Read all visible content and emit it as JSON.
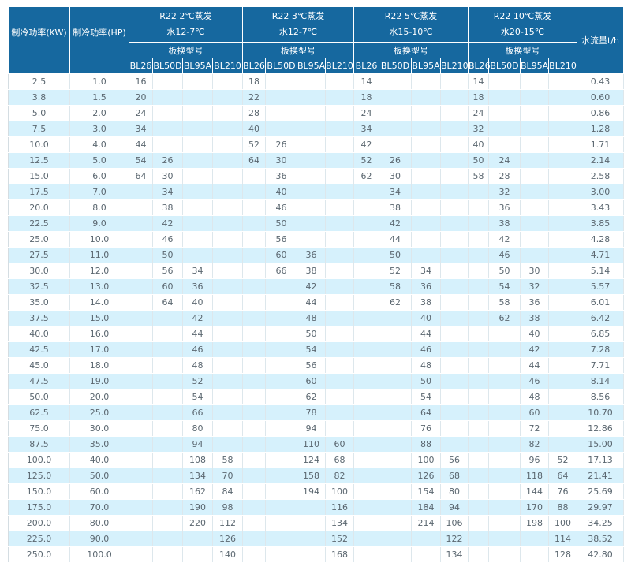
{
  "table": {
    "kw_label": "制冷功率(KW)",
    "hp_label": "制冷功率(HP)",
    "flow_label": "水流量t/h",
    "groups": [
      {
        "title_line1": "R22 2℃蒸发",
        "title_line2": "水12-7℃",
        "subtitle": "板换型号",
        "models": [
          "BL26",
          "BL50D",
          "BL95A",
          "BL210"
        ]
      },
      {
        "title_line1": "R22 3℃蒸发",
        "title_line2": "水12-7℃",
        "subtitle": "板换型号",
        "models": [
          "BL26",
          "BL50D",
          "BL95A",
          "BL210"
        ]
      },
      {
        "title_line1": "R22 5℃蒸发",
        "title_line2": "水15-10℃",
        "subtitle": "板换型号",
        "models": [
          "BL26",
          "BL50D",
          "BL95A",
          "BL210"
        ]
      },
      {
        "title_line1": "R22 10℃蒸发",
        "title_line2": "水20-15℃",
        "subtitle": "板换型号",
        "models": [
          "BL26",
          "BL50D",
          "BL95A",
          "BL210"
        ]
      }
    ],
    "colors": {
      "header_bg": "#16689f",
      "header_text": "#ffffff",
      "row_bg": "#ffffff",
      "row_alt_bg": "#d6f1fc",
      "body_text": "#5b6770",
      "grid_line": "#dde7ec"
    },
    "rows": [
      [
        "2.5",
        "1.0",
        "16",
        "",
        "",
        "",
        "18",
        "",
        "",
        "",
        "14",
        "",
        "",
        "",
        "14",
        "",
        "",
        "",
        "0.43"
      ],
      [
        "3.8",
        "1.5",
        "20",
        "",
        "",
        "",
        "22",
        "",
        "",
        "",
        "18",
        "",
        "",
        "",
        "18",
        "",
        "",
        "",
        "0.60"
      ],
      [
        "5.0",
        "2.0",
        "24",
        "",
        "",
        "",
        "28",
        "",
        "",
        "",
        "24",
        "",
        "",
        "",
        "24",
        "",
        "",
        "",
        "0.86"
      ],
      [
        "7.5",
        "3.0",
        "34",
        "",
        "",
        "",
        "40",
        "",
        "",
        "",
        "34",
        "",
        "",
        "",
        "32",
        "",
        "",
        "",
        "1.28"
      ],
      [
        "10.0",
        "4.0",
        "44",
        "",
        "",
        "",
        "52",
        "26",
        "",
        "",
        "42",
        "",
        "",
        "",
        "40",
        "",
        "",
        "",
        "1.71"
      ],
      [
        "12.5",
        "5.0",
        "54",
        "26",
        "",
        "",
        "64",
        "30",
        "",
        "",
        "52",
        "26",
        "",
        "",
        "50",
        "24",
        "",
        "",
        "2.14"
      ],
      [
        "15.0",
        "6.0",
        "64",
        "30",
        "",
        "",
        "",
        "36",
        "",
        "",
        "62",
        "30",
        "",
        "",
        "58",
        "28",
        "",
        "",
        "2.58"
      ],
      [
        "17.5",
        "7.0",
        "",
        "34",
        "",
        "",
        "",
        "40",
        "",
        "",
        "",
        "34",
        "",
        "",
        "",
        "32",
        "",
        "",
        "3.00"
      ],
      [
        "20.0",
        "8.0",
        "",
        "38",
        "",
        "",
        "",
        "46",
        "",
        "",
        "",
        "38",
        "",
        "",
        "",
        "36",
        "",
        "",
        "3.43"
      ],
      [
        "22.5",
        "9.0",
        "",
        "42",
        "",
        "",
        "",
        "50",
        "",
        "",
        "",
        "42",
        "",
        "",
        "",
        "38",
        "",
        "",
        "3.85"
      ],
      [
        "25.0",
        "10.0",
        "",
        "46",
        "",
        "",
        "",
        "56",
        "",
        "",
        "",
        "44",
        "",
        "",
        "",
        "42",
        "",
        "",
        "4.28"
      ],
      [
        "27.5",
        "11.0",
        "",
        "50",
        "",
        "",
        "",
        "60",
        "36",
        "",
        "",
        "50",
        "",
        "",
        "",
        "46",
        "",
        "",
        "4.71"
      ],
      [
        "30.0",
        "12.0",
        "",
        "56",
        "34",
        "",
        "",
        "66",
        "38",
        "",
        "",
        "52",
        "34",
        "",
        "",
        "50",
        "30",
        "",
        "5.14"
      ],
      [
        "32.5",
        "13.0",
        "",
        "60",
        "36",
        "",
        "",
        "",
        "42",
        "",
        "",
        "58",
        "36",
        "",
        "",
        "54",
        "32",
        "",
        "5.57"
      ],
      [
        "35.0",
        "14.0",
        "",
        "64",
        "40",
        "",
        "",
        "",
        "44",
        "",
        "",
        "62",
        "38",
        "",
        "",
        "58",
        "36",
        "",
        "6.01"
      ],
      [
        "37.5",
        "15.0",
        "",
        "",
        "42",
        "",
        "",
        "",
        "48",
        "",
        "",
        "",
        "40",
        "",
        "",
        "62",
        "38",
        "",
        "6.42"
      ],
      [
        "40.0",
        "16.0",
        "",
        "",
        "44",
        "",
        "",
        "",
        "50",
        "",
        "",
        "",
        "44",
        "",
        "",
        "",
        "40",
        "",
        "6.85"
      ],
      [
        "42.5",
        "17.0",
        "",
        "",
        "46",
        "",
        "",
        "",
        "54",
        "",
        "",
        "",
        "46",
        "",
        "",
        "",
        "42",
        "",
        "7.28"
      ],
      [
        "45.0",
        "18.0",
        "",
        "",
        "48",
        "",
        "",
        "",
        "56",
        "",
        "",
        "",
        "48",
        "",
        "",
        "",
        "44",
        "",
        "7.71"
      ],
      [
        "47.5",
        "19.0",
        "",
        "",
        "52",
        "",
        "",
        "",
        "60",
        "",
        "",
        "",
        "50",
        "",
        "",
        "",
        "46",
        "",
        "8.14"
      ],
      [
        "50.0",
        "20.0",
        "",
        "",
        "54",
        "",
        "",
        "",
        "62",
        "",
        "",
        "",
        "54",
        "",
        "",
        "",
        "48",
        "",
        "8.56"
      ],
      [
        "62.5",
        "25.0",
        "",
        "",
        "66",
        "",
        "",
        "",
        "78",
        "",
        "",
        "",
        "64",
        "",
        "",
        "",
        "60",
        "",
        "10.70"
      ],
      [
        "75.0",
        "30.0",
        "",
        "",
        "80",
        "",
        "",
        "",
        "94",
        "",
        "",
        "",
        "76",
        "",
        "",
        "",
        "72",
        "",
        "12.86"
      ],
      [
        "87.5",
        "35.0",
        "",
        "",
        "94",
        "",
        "",
        "",
        "110",
        "60",
        "",
        "",
        "88",
        "",
        "",
        "",
        "82",
        "",
        "15.00"
      ],
      [
        "100.0",
        "40.0",
        "",
        "",
        "108",
        "58",
        "",
        "",
        "124",
        "68",
        "",
        "",
        "100",
        "56",
        "",
        "",
        "96",
        "52",
        "17.13"
      ],
      [
        "125.0",
        "50.0",
        "",
        "",
        "134",
        "70",
        "",
        "",
        "158",
        "82",
        "",
        "",
        "126",
        "68",
        "",
        "",
        "118",
        "64",
        "21.41"
      ],
      [
        "150.0",
        "60.0",
        "",
        "",
        "162",
        "84",
        "",
        "",
        "194",
        "100",
        "",
        "",
        "154",
        "80",
        "",
        "",
        "144",
        "76",
        "25.69"
      ],
      [
        "175.0",
        "70.0",
        "",
        "",
        "190",
        "98",
        "",
        "",
        "",
        "116",
        "",
        "",
        "184",
        "94",
        "",
        "",
        "170",
        "88",
        "29.97"
      ],
      [
        "200.0",
        "80.0",
        "",
        "",
        "220",
        "112",
        "",
        "",
        "",
        "134",
        "",
        "",
        "214",
        "106",
        "",
        "",
        "198",
        "100",
        "34.25"
      ],
      [
        "225.0",
        "90.0",
        "",
        "",
        "",
        "126",
        "",
        "",
        "",
        "152",
        "",
        "",
        "",
        "122",
        "",
        "",
        "",
        "114",
        "38.52"
      ],
      [
        "250.0",
        "100.0",
        "",
        "",
        "",
        "140",
        "",
        "",
        "",
        "168",
        "",
        "",
        "",
        "134",
        "",
        "",
        "",
        "128",
        "42.80"
      ]
    ]
  }
}
